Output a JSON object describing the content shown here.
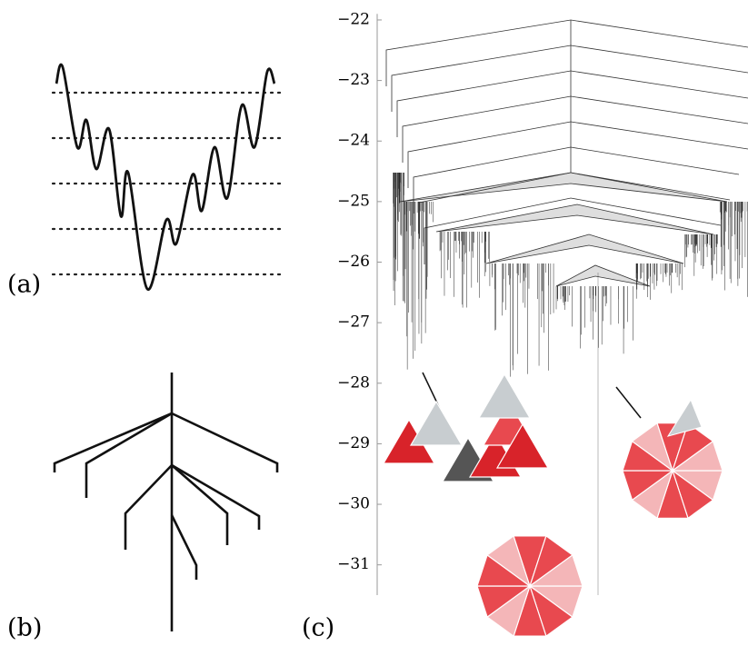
{
  "panels": {
    "a": {
      "label": "(a)"
    },
    "b": {
      "label": "(b)"
    },
    "c": {
      "label": "(c)"
    }
  },
  "axis": {
    "ylim": [
      -21.9,
      -31.5
    ],
    "yticks": [
      {
        "value": -22,
        "label": "−22"
      },
      {
        "value": -23,
        "label": "−23"
      },
      {
        "value": -24,
        "label": "−24"
      },
      {
        "value": -25,
        "label": "−25"
      },
      {
        "value": -26,
        "label": "−26"
      },
      {
        "value": -27,
        "label": "−27"
      },
      {
        "value": -28,
        "label": "−28"
      },
      {
        "value": -29,
        "label": "−29"
      },
      {
        "value": -30,
        "label": "−30"
      },
      {
        "value": -31,
        "label": "−31"
      }
    ]
  }
}
